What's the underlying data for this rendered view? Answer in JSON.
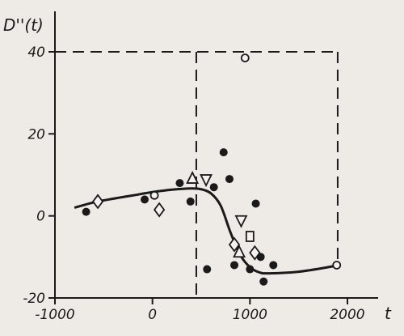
{
  "chart_data": {
    "type": "scatter",
    "ylabel": "D''(t)",
    "xlabel": "t",
    "xlim": [
      -1000,
      2000
    ],
    "ylim": [
      -20,
      40
    ],
    "x_ticks": [
      "-1000",
      "0",
      "1000",
      "2000"
    ],
    "y_ticks": [
      "40",
      "20",
      "0",
      "-20"
    ],
    "grid": false,
    "dashed_box": {
      "x_from": 450,
      "x_to": 1900,
      "y_top": 40,
      "y_bottom": -20
    },
    "fit_curve": {
      "x": [
        -800,
        -600,
        -400,
        -200,
        0,
        200,
        400,
        500,
        600,
        700,
        800,
        900,
        1000,
        1100,
        1200,
        1500,
        1800,
        1900
      ],
      "y": [
        2.0,
        3.3,
        4.2,
        5.0,
        5.8,
        6.4,
        6.7,
        6.5,
        5.5,
        2.5,
        -4.0,
        -9.5,
        -12.5,
        -13.8,
        -14.0,
        -13.6,
        -12.5,
        -12.0
      ]
    },
    "series": [
      {
        "marker": "filled-circle",
        "points": [
          {
            "x": -680,
            "y": 1
          },
          {
            "x": -80,
            "y": 4
          },
          {
            "x": 280,
            "y": 8
          },
          {
            "x": 390,
            "y": 3.5
          },
          {
            "x": 630,
            "y": 7
          },
          {
            "x": 730,
            "y": 15.5
          },
          {
            "x": 790,
            "y": 9
          },
          {
            "x": 1060,
            "y": 3
          },
          {
            "x": 560,
            "y": -13
          },
          {
            "x": 840,
            "y": -12
          },
          {
            "x": 1000,
            "y": -13
          },
          {
            "x": 1110,
            "y": -10
          },
          {
            "x": 1240,
            "y": -12
          },
          {
            "x": 1140,
            "y": -16
          }
        ]
      },
      {
        "marker": "open-circle",
        "points": [
          {
            "x": 20,
            "y": 5
          },
          {
            "x": 950,
            "y": 38.5
          },
          {
            "x": 1890,
            "y": -12
          }
        ]
      },
      {
        "marker": "open-diamond",
        "points": [
          {
            "x": -560,
            "y": 3.5
          },
          {
            "x": 70,
            "y": 1.5
          },
          {
            "x": 840,
            "y": -7
          },
          {
            "x": 1050,
            "y": -9
          }
        ]
      },
      {
        "marker": "open-triangle-up",
        "points": [
          {
            "x": 410,
            "y": 9
          },
          {
            "x": 890,
            "y": -9
          }
        ]
      },
      {
        "marker": "open-triangle-down",
        "points": [
          {
            "x": 550,
            "y": 9
          },
          {
            "x": 910,
            "y": -1
          }
        ]
      },
      {
        "marker": "open-square",
        "points": [
          {
            "x": 1000,
            "y": -5
          }
        ]
      }
    ]
  }
}
